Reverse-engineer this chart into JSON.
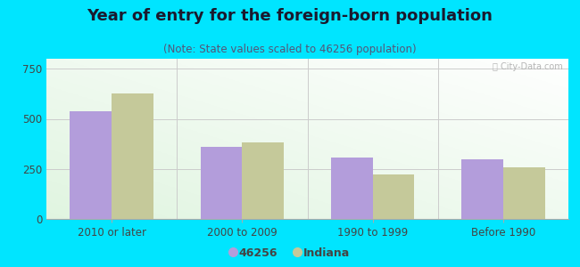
{
  "title": "Year of entry for the foreign-born population",
  "subtitle": "(Note: State values scaled to 46256 population)",
  "categories": [
    "2010 or later",
    "2000 to 2009",
    "1990 to 1999",
    "Before 1990"
  ],
  "values_46256": [
    540,
    360,
    305,
    300
  ],
  "values_indiana": [
    625,
    383,
    222,
    258
  ],
  "color_46256": "#b39ddb",
  "color_indiana": "#c5c99a",
  "ylim": [
    0,
    800
  ],
  "yticks": [
    0,
    250,
    500,
    750
  ],
  "background_outer": "#00e5ff",
  "legend_label_1": "46256",
  "legend_label_2": "Indiana",
  "bar_width": 0.32,
  "title_fontsize": 13,
  "subtitle_fontsize": 8.5
}
